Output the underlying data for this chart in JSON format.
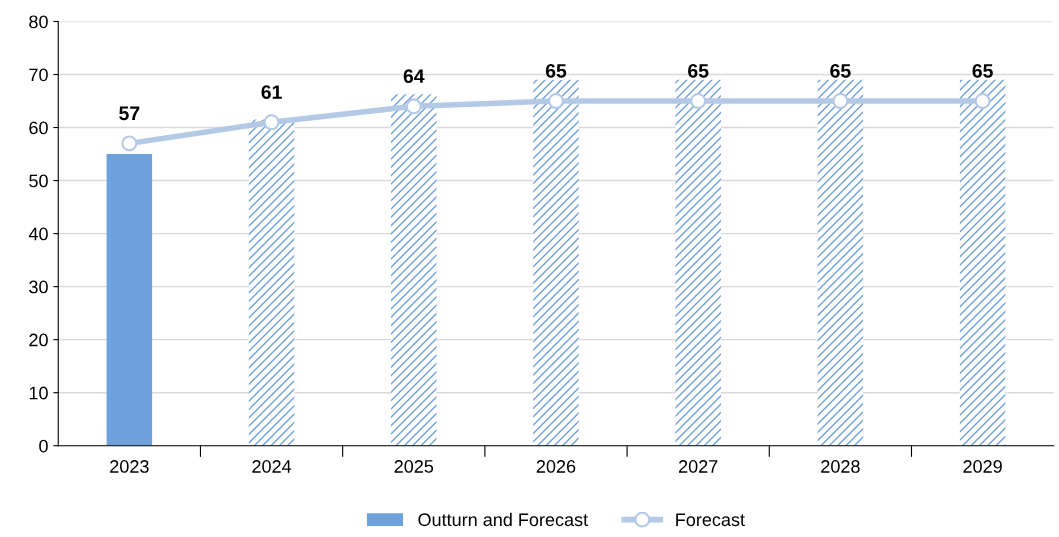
{
  "chart_data": {
    "type": "bar",
    "categories": [
      "2023",
      "2024",
      "2025",
      "2026",
      "2027",
      "2028",
      "2029"
    ],
    "series": [
      {
        "name": "Outturn and Forecast",
        "color": "#6fa1dc",
        "values": [
          55,
          null,
          null,
          null,
          null,
          null,
          null
        ]
      },
      {
        "color": "#6fa1dc",
        "values": [
          null,
          61.5,
          66.3,
          69,
          69,
          69,
          69
        ]
      },
      {
        "type": "line",
        "name": "Forecast",
        "color": "#b4c9e6",
        "marker": "circle",
        "values": [
          57,
          61,
          64,
          65,
          65,
          65,
          65
        ],
        "value_labels": [
          "57",
          "61",
          "64",
          "65",
          "65",
          "65",
          "65"
        ]
      }
    ],
    "ylim": [
      0,
      80
    ],
    "yticks": [
      0,
      10,
      20,
      30,
      40,
      50,
      60,
      70,
      80
    ],
    "grid": "y",
    "legend": "bottom"
  }
}
